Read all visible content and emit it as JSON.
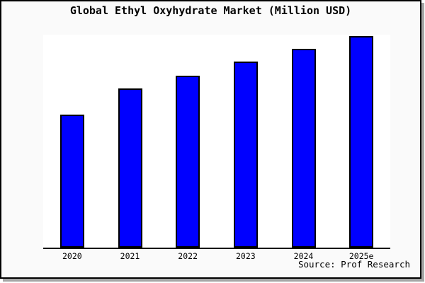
{
  "chart_data": {
    "type": "bar",
    "title": "Global Ethyl Oxyhydrate Market (Million USD)",
    "categories": [
      "2020",
      "2021",
      "2022",
      "2023",
      "2024",
      "2025e"
    ],
    "values": [
      62.9,
      75.3,
      81.3,
      88.0,
      94.0,
      100.0
    ],
    "value_scale_note": "y-axis is unlabeled; values are relative bar heights normalized to the 2025e bar = 100",
    "xlabel": "",
    "ylabel": "",
    "ylim": [
      0,
      100
    ],
    "grid": false,
    "legend": false,
    "y_axis_labeled": false,
    "bar_color": "#0000ff",
    "bar_border_color": "#000000",
    "source_label": "Source: Prof Research"
  },
  "frame": {
    "background": "#fafafa",
    "plot_background": "#ffffff",
    "border_color": "#000000",
    "shadow_color": "#a6a6a6",
    "text_color": "#000000"
  }
}
